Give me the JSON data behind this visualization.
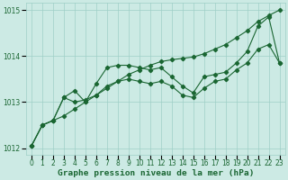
{
  "title": "Graphe pression niveau de la mer (hPa)",
  "x_values": [
    0,
    1,
    2,
    3,
    4,
    5,
    6,
    7,
    8,
    9,
    10,
    11,
    12,
    13,
    14,
    15,
    16,
    17,
    18,
    19,
    20,
    21,
    22,
    23
  ],
  "line_top": [
    1012.05,
    1012.5,
    1012.6,
    1012.7,
    1012.85,
    1013.0,
    1013.15,
    1013.3,
    1013.45,
    1013.6,
    1013.7,
    1013.8,
    1013.88,
    1013.92,
    1013.95,
    1013.98,
    1014.05,
    1014.15,
    1014.25,
    1014.4,
    1014.55,
    1014.75,
    1014.88,
    1015.0
  ],
  "line_mid": [
    1012.05,
    1012.5,
    1012.6,
    1013.1,
    1013.25,
    1013.0,
    1013.4,
    1013.75,
    1013.8,
    1013.8,
    1013.75,
    1013.7,
    1013.75,
    1013.55,
    1013.35,
    1013.2,
    1013.55,
    1013.6,
    1013.65,
    1013.85,
    1014.1,
    1014.65,
    1014.85,
    1013.85
  ],
  "line_low": [
    1012.05,
    1012.5,
    1012.6,
    1013.1,
    1013.0,
    1013.05,
    1013.15,
    1013.35,
    1013.45,
    1013.5,
    1013.45,
    1013.4,
    1013.45,
    1013.35,
    1013.15,
    1013.1,
    1013.3,
    1013.45,
    1013.5,
    1013.7,
    1013.85,
    1014.15,
    1014.25,
    1013.85
  ],
  "ylim": [
    1012.0,
    1015.0
  ],
  "yticks": [
    1012,
    1013,
    1014,
    1015
  ],
  "xticks": [
    0,
    1,
    2,
    3,
    4,
    5,
    6,
    7,
    8,
    9,
    10,
    11,
    12,
    13,
    14,
    15,
    16,
    17,
    18,
    19,
    20,
    21,
    22,
    23
  ],
  "bg_color": "#cceae4",
  "grid_color": "#9fcfc7",
  "line_color": "#1a6632",
  "text_color": "#1a6632",
  "tick_fontsize": 5.5,
  "title_fontsize": 6.8
}
